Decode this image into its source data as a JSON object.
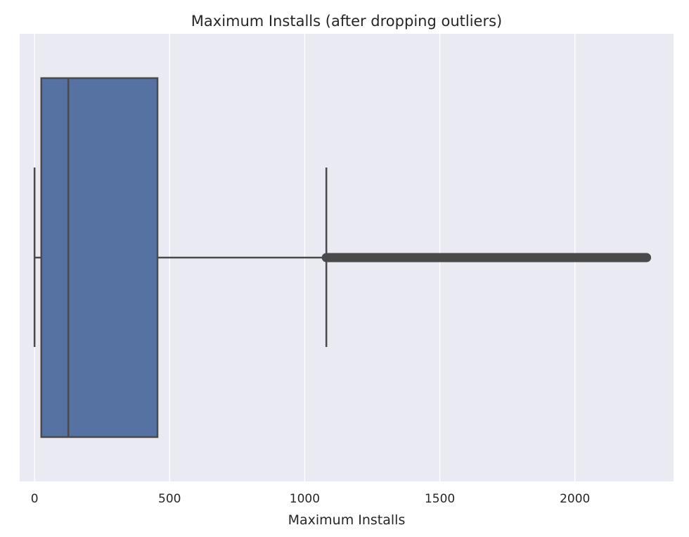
{
  "chart_data": {
    "type": "boxplot",
    "orientation": "horizontal",
    "title": "Maximum Installs (after dropping outliers)",
    "xlabel": "Maximum Installs",
    "ylabel": "",
    "xlim": [
      -55,
      2365
    ],
    "xticks": [
      0,
      500,
      1000,
      1500,
      2000
    ],
    "xtick_labels": [
      "0",
      "500",
      "1000",
      "1500",
      "2000"
    ],
    "grid": "x-major",
    "box": {
      "whisker_low": 0,
      "q1": 25,
      "median": 125,
      "q3": 455,
      "whisker_high": 1080
    },
    "outliers_range": [
      1080,
      2265
    ],
    "colors": {
      "plot_background": "#eaeaf2",
      "grid": "#ffffff",
      "box_fill": "#5572a3",
      "line": "#4a4a4a",
      "text": "#262626"
    }
  }
}
